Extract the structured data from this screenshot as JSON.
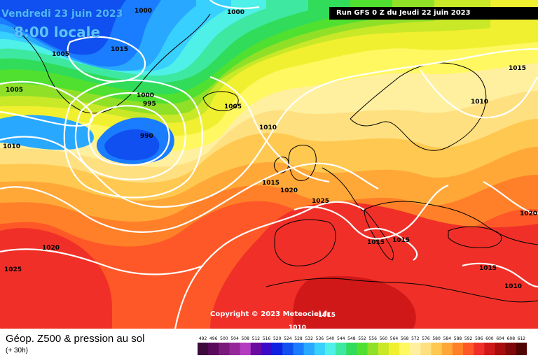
{
  "header": {
    "date_label": "Vendredi 23 juin 2023",
    "time_label": "8:00 locale",
    "run_label": "Run GFS 0 Z du Jeudi 22 juin 2023"
  },
  "copyright": "Copyright © 2023 Meteociel.fr",
  "footer": {
    "title": "Géop. Z500 & pression au sol",
    "subtitle": "(+ 30h)"
  },
  "legend": {
    "values": [
      "492",
      "496",
      "500",
      "504",
      "508",
      "512",
      "516",
      "520",
      "524",
      "528",
      "532",
      "536",
      "540",
      "544",
      "548",
      "552",
      "556",
      "560",
      "564",
      "568",
      "572",
      "576",
      "580",
      "584",
      "588",
      "592",
      "596",
      "600",
      "604",
      "608",
      "612"
    ],
    "colors": [
      "#3c0a3c",
      "#5a0a5a",
      "#7a1a7a",
      "#96289a",
      "#b43cc0",
      "#6a0aa0",
      "#3a0ac8",
      "#1020e0",
      "#1050f0",
      "#1a7cff",
      "#28a8ff",
      "#38d0ff",
      "#4ef0e8",
      "#3ee8a0",
      "#30dc5a",
      "#50e030",
      "#90e028",
      "#c8e828",
      "#f0f030",
      "#fff860",
      "#fff0a0",
      "#ffe080",
      "#ffc850",
      "#ffa838",
      "#ff8028",
      "#ff5828",
      "#f03028",
      "#d01818",
      "#a80c0c",
      "#800808",
      "#500404"
    ]
  },
  "pressure_labels": [
    {
      "id": "p1000a",
      "text": "1000"
    },
    {
      "id": "p1000b",
      "text": "1000"
    },
    {
      "id": "p1005a",
      "text": "1005"
    },
    {
      "id": "p1015a",
      "text": "1015"
    },
    {
      "id": "p1005b",
      "text": "1005"
    },
    {
      "id": "p1000c",
      "text": "1000"
    },
    {
      "id": "p995",
      "text": "995"
    },
    {
      "id": "p990",
      "text": "990"
    },
    {
      "id": "p1010a",
      "text": "1010"
    },
    {
      "id": "p1005c",
      "text": "1005"
    },
    {
      "id": "p1010b",
      "text": "1010"
    },
    {
      "id": "p1015b",
      "text": "1015"
    },
    {
      "id": "p1020a",
      "text": "1020"
    },
    {
      "id": "p1025a",
      "text": "1025"
    },
    {
      "id": "p1015c",
      "text": "1015"
    },
    {
      "id": "p1010c",
      "text": "1010"
    },
    {
      "id": "p1020b",
      "text": "1020"
    },
    {
      "id": "p1015d",
      "text": "1015"
    },
    {
      "id": "p1015e",
      "text": "1015"
    },
    {
      "id": "p1015f",
      "text": "1015"
    },
    {
      "id": "p1010d",
      "text": "1010"
    },
    {
      "id": "p1020c",
      "text": "1020"
    },
    {
      "id": "p1025b",
      "text": "1025"
    },
    {
      "id": "p1010e",
      "text": "1010"
    },
    {
      "id": "p1015g",
      "text": "1015"
    }
  ]
}
